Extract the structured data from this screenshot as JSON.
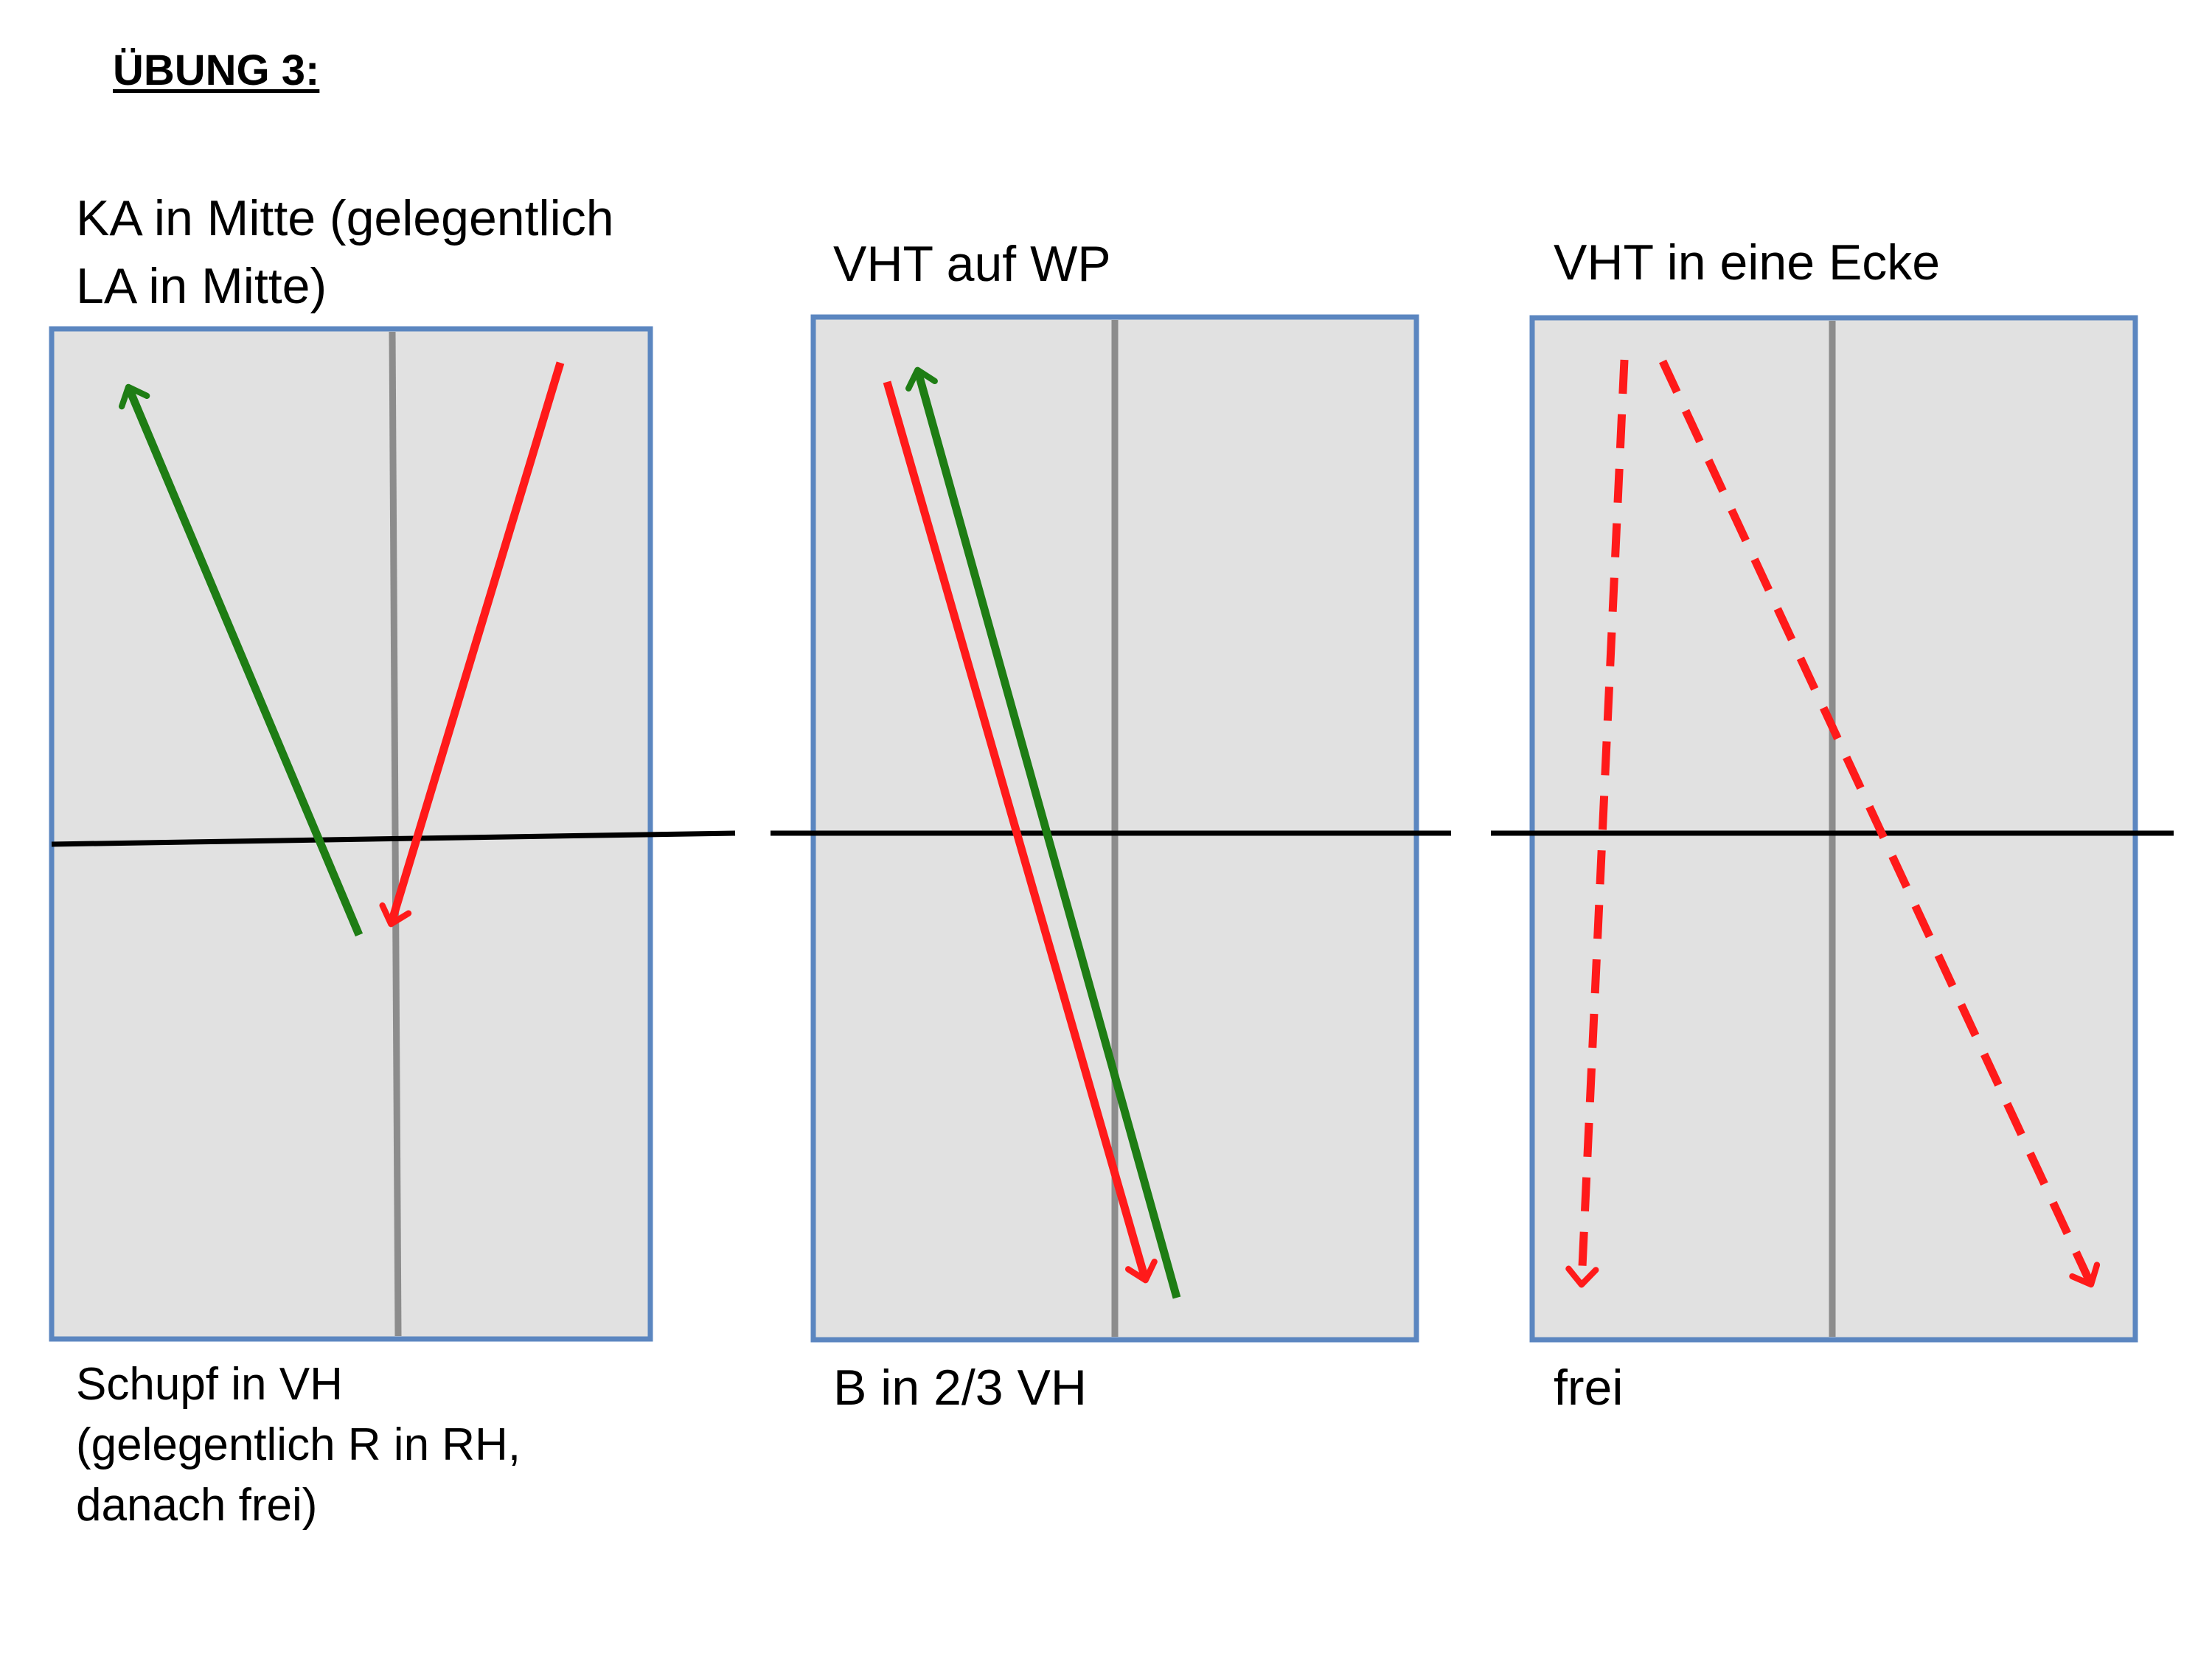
{
  "title": "ÜBUNG 3:",
  "colors": {
    "court_fill": "#e1e1e1",
    "court_border": "#5b86c0",
    "center_line": "#8c8c8c",
    "net": "#000000",
    "green_arrow": "#1e7d14",
    "red_arrow": "#ff1a1a"
  },
  "panels": [
    {
      "top_caption_lines": [
        "KA in Mitte (gelegentlich",
        "LA in Mitte)"
      ],
      "bottom_caption_lines": [
        "Schupf in VH",
        "(gelegentlich R in RH,",
        "danach frei)"
      ],
      "arrows": [
        "green-solid-arrow",
        "red-solid-arrow"
      ]
    },
    {
      "top_caption_lines": [
        "VHT auf WP"
      ],
      "bottom_caption_lines": [
        "B in 2/3 VH"
      ],
      "arrows": [
        "red-solid-arrow",
        "green-solid-arrow"
      ]
    },
    {
      "top_caption_lines": [
        "VHT in eine Ecke"
      ],
      "bottom_caption_lines": [
        "frei"
      ],
      "arrows": [
        "red-dashed-arrow",
        "red-dashed-arrow"
      ]
    }
  ]
}
